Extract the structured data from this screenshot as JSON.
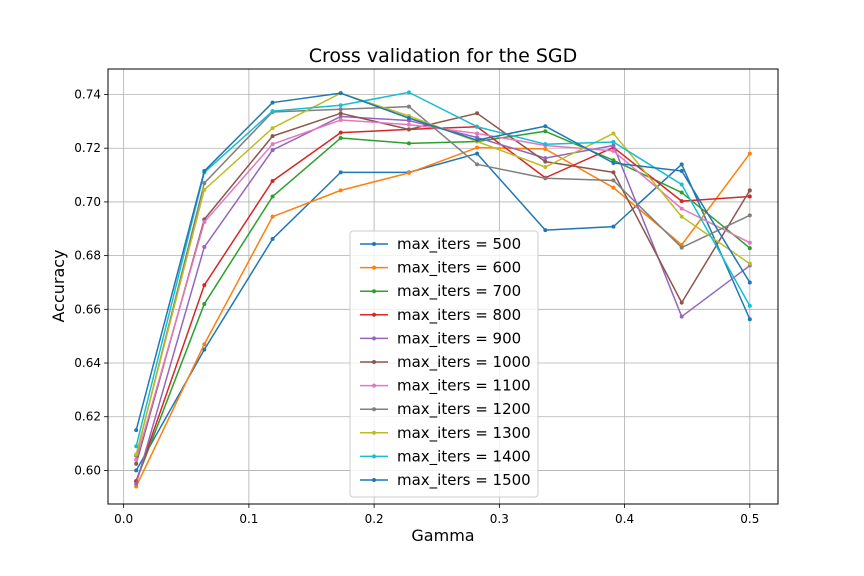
{
  "chart_data": {
    "type": "line",
    "title": "Cross validation for the SGD",
    "xlabel": "Gamma",
    "ylabel": "Accuracy",
    "xlim": [
      -0.0125,
      0.5225
    ],
    "ylim": [
      0.5875,
      0.7495
    ],
    "grid": true,
    "legend_position": "lower-center",
    "x": [
      0.01,
      0.0644,
      0.1189,
      0.1733,
      0.2278,
      0.2822,
      0.3367,
      0.3911,
      0.4456,
      0.5
    ],
    "xticks": [
      0.0,
      0.1,
      0.2,
      0.3,
      0.4,
      0.5
    ],
    "xtick_labels": [
      "0.0",
      "0.1",
      "0.2",
      "0.3",
      "0.4",
      "0.5"
    ],
    "yticks": [
      0.6,
      0.62,
      0.64,
      0.66,
      0.68,
      0.7,
      0.72,
      0.74
    ],
    "ytick_labels": [
      "0.60",
      "0.62",
      "0.64",
      "0.66",
      "0.68",
      "0.70",
      "0.72",
      "0.74"
    ],
    "series": [
      {
        "name": "max_iters = 500",
        "color": "#1f77b4",
        "values": [
          0.6,
          0.645,
          0.6862,
          0.711,
          0.711,
          0.718,
          0.6895,
          0.6908,
          0.714,
          0.6563
        ]
      },
      {
        "name": "max_iters = 600",
        "color": "#ff7f0e",
        "values": [
          0.594,
          0.647,
          0.6945,
          0.7043,
          0.7108,
          0.7202,
          0.7197,
          0.7053,
          0.684,
          0.718
        ]
      },
      {
        "name": "max_iters = 700",
        "color": "#2ca02c",
        "values": [
          0.596,
          0.662,
          0.702,
          0.7238,
          0.7218,
          0.7225,
          0.7263,
          0.7155,
          0.7035,
          0.6828
        ]
      },
      {
        "name": "max_iters = 800",
        "color": "#d62728",
        "values": [
          0.596,
          0.669,
          0.7078,
          0.7258,
          0.727,
          0.728,
          0.709,
          0.7203,
          0.7003,
          0.702
        ]
      },
      {
        "name": "max_iters = 900",
        "color": "#9467bd",
        "values": [
          0.595,
          0.6832,
          0.7193,
          0.7318,
          0.7303,
          0.724,
          0.7163,
          0.721,
          0.6573,
          0.6763
        ]
      },
      {
        "name": "max_iters = 1000",
        "color": "#8c564b",
        "values": [
          0.6025,
          0.6935,
          0.7245,
          0.733,
          0.727,
          0.733,
          0.715,
          0.711,
          0.6625,
          0.7043
        ]
      },
      {
        "name": "max_iters = 1100",
        "color": "#e377c2",
        "values": [
          0.604,
          0.6925,
          0.7215,
          0.7305,
          0.7288,
          0.7255,
          0.721,
          0.719,
          0.6975,
          0.6848
        ]
      },
      {
        "name": "max_iters = 1200",
        "color": "#7f7f7f",
        "values": [
          0.6055,
          0.707,
          0.7335,
          0.7345,
          0.7355,
          0.714,
          0.7088,
          0.708,
          0.683,
          0.695
        ]
      },
      {
        "name": "max_iters = 1300",
        "color": "#bcbd22",
        "values": [
          0.606,
          0.7045,
          0.7275,
          0.7405,
          0.732,
          0.7225,
          0.713,
          0.7255,
          0.6945,
          0.677
        ]
      },
      {
        "name": "max_iters = 1400",
        "color": "#17becf",
        "values": [
          0.609,
          0.711,
          0.7338,
          0.736,
          0.7408,
          0.728,
          0.7215,
          0.7223,
          0.7065,
          0.6613
        ]
      },
      {
        "name": "max_iters = 1500",
        "color": "#1f77b4",
        "values": [
          0.615,
          0.7115,
          0.737,
          0.7405,
          0.7312,
          0.723,
          0.7282,
          0.7145,
          0.7115,
          0.67
        ]
      }
    ]
  }
}
